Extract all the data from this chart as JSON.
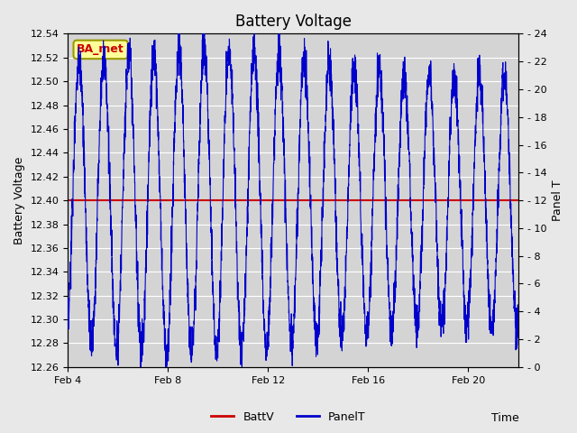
{
  "title": "Battery Voltage",
  "xlabel": "Time",
  "ylabel_left": "Battery Voltage",
  "ylabel_right": "Panel T",
  "xlim_days": [
    4,
    22
  ],
  "ylim_left": [
    12.26,
    12.54
  ],
  "ylim_right": [
    0,
    24
  ],
  "battv_value": 12.4,
  "battv_color": "#cc0000",
  "panelt_color": "#0000cc",
  "fig_bg_color": "#e8e8e8",
  "plot_bg_color": "#d4d4d4",
  "grid_color": "#ffffff",
  "annotation_text": "BA_met",
  "annotation_box_color": "#ffff99",
  "annotation_border_color": "#999900",
  "annotation_text_color": "#cc0000",
  "legend_labels": [
    "BattV",
    "PanelT"
  ],
  "x_tick_labels": [
    "Feb 4",
    "Feb 8",
    "Feb 12",
    "Feb 16",
    "Feb 20"
  ],
  "x_tick_positions": [
    4,
    8,
    12,
    16,
    20
  ],
  "y_left_ticks": [
    12.26,
    12.28,
    12.3,
    12.32,
    12.34,
    12.36,
    12.38,
    12.4,
    12.42,
    12.44,
    12.46,
    12.48,
    12.5,
    12.52,
    12.54
  ],
  "y_right_ticks": [
    0,
    2,
    4,
    6,
    8,
    10,
    12,
    14,
    16,
    18,
    20,
    22,
    24
  ],
  "title_fontsize": 12,
  "label_fontsize": 9,
  "tick_fontsize": 8,
  "legend_fontsize": 9
}
